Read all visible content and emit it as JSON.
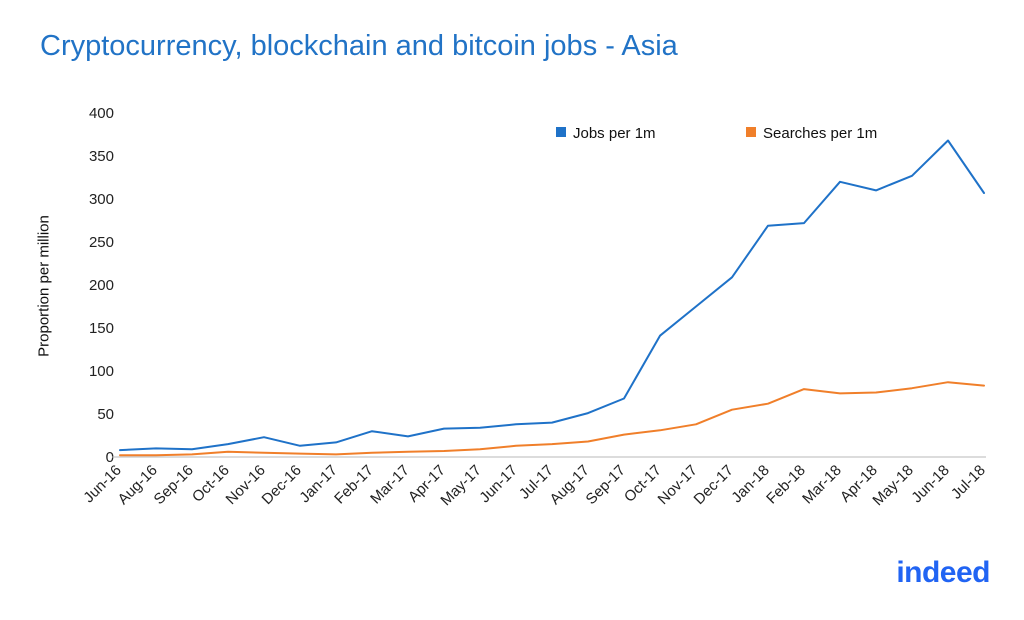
{
  "chart_data": {
    "type": "line",
    "title": "Cryptocurrency, blockchain and bitcoin jobs - Asia",
    "xlabel": "",
    "ylabel": "Proportion per million",
    "ylim": [
      0,
      400
    ],
    "yticks": [
      "0",
      "50",
      "100",
      "150",
      "200",
      "250",
      "300",
      "350",
      "400"
    ],
    "categories": [
      "Jun-16",
      "Aug-16",
      "Sep-16",
      "Oct-16",
      "Nov-16",
      "Dec-16",
      "Jan-17",
      "Feb-17",
      "Mar-17",
      "Apr-17",
      "May-17",
      "Jun-17",
      "Jul-17",
      "Aug-17",
      "Sep-17",
      "Oct-17",
      "Nov-17",
      "Dec-17",
      "Jan-18",
      "Feb-18",
      "Mar-18",
      "Apr-18",
      "May-18",
      "Jun-18",
      "Jul-18"
    ],
    "series": [
      {
        "name": "Jobs per 1m",
        "color": "#1f72c8",
        "values": [
          8,
          10,
          9,
          15,
          23,
          13,
          17,
          30,
          24,
          33,
          34,
          38,
          40,
          51,
          68,
          141,
          175,
          209,
          269,
          272,
          320,
          310,
          327,
          368,
          307
        ]
      },
      {
        "name": "Searches per 1m",
        "color": "#f07f2a",
        "values": [
          2,
          2,
          3,
          6,
          5,
          4,
          3,
          5,
          6,
          7,
          9,
          13,
          15,
          18,
          26,
          31,
          38,
          55,
          62,
          79,
          74,
          75,
          80,
          87,
          83
        ]
      }
    ],
    "legend_position": "top-right",
    "grid": false
  },
  "logo": {
    "text": "indeed"
  }
}
